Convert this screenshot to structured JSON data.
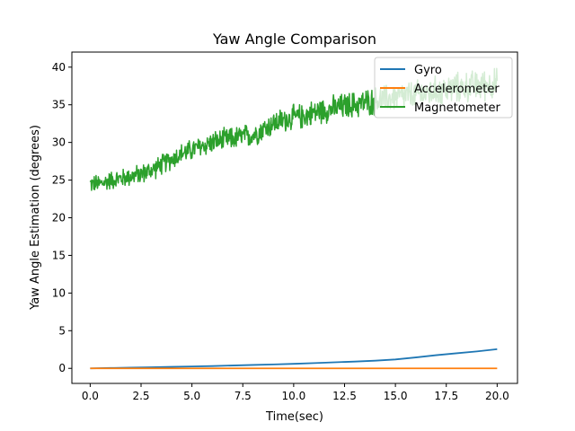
{
  "chart_data": {
    "type": "line",
    "title": "Yaw Angle Comparison",
    "xlabel": "Time(sec)",
    "ylabel": "Yaw Angle Estimation (degrees)",
    "xlim": [
      -0.9,
      21.0
    ],
    "ylim": [
      -2.0,
      42.0
    ],
    "xticks": [
      0.0,
      2.5,
      5.0,
      7.5,
      10.0,
      12.5,
      15.0,
      17.5,
      20.0
    ],
    "xtick_labels": [
      "0.0",
      "2.5",
      "5.0",
      "7.5",
      "10.0",
      "12.5",
      "15.0",
      "17.5",
      "20.0"
    ],
    "yticks": [
      0,
      5,
      10,
      15,
      20,
      25,
      30,
      35,
      40
    ],
    "ytick_labels": [
      "0",
      "5",
      "10",
      "15",
      "20",
      "25",
      "30",
      "35",
      "40"
    ],
    "grid": false,
    "legend_position": "top-right",
    "series": [
      {
        "name": "Gyro",
        "color": "#1f77b4",
        "x": [
          0,
          1,
          2,
          3,
          4,
          5,
          6,
          7,
          8,
          9,
          10,
          11,
          12,
          13,
          14,
          15,
          16,
          17,
          18,
          19,
          20
        ],
        "y": [
          0.0,
          0.05,
          0.1,
          0.15,
          0.2,
          0.25,
          0.3,
          0.38,
          0.45,
          0.52,
          0.6,
          0.7,
          0.8,
          0.9,
          1.02,
          1.18,
          1.45,
          1.75,
          2.0,
          2.25,
          2.55
        ]
      },
      {
        "name": "Accelerometer",
        "color": "#ff7f0e",
        "x": [
          0,
          2.5,
          5,
          7.5,
          10,
          12.5,
          15,
          17.5,
          20
        ],
        "y": [
          0,
          0,
          0,
          0,
          0,
          0,
          0,
          0,
          0
        ]
      },
      {
        "name": "Magnetometer",
        "color": "#2ca02c",
        "x": [
          0,
          0.5,
          1,
          1.5,
          2,
          2.5,
          3,
          3.5,
          4,
          4.5,
          5,
          5.5,
          6,
          6.5,
          7,
          7.5,
          8,
          8.5,
          9,
          9.5,
          10,
          10.5,
          11,
          11.5,
          12,
          12.5,
          13,
          13.5,
          14,
          14.5,
          15,
          15.5,
          16,
          16.5,
          17,
          17.5,
          18,
          18.5,
          19,
          19.5,
          20
        ],
        "y": [
          24.5,
          24.5,
          25.0,
          25.2,
          25.5,
          25.8,
          26.3,
          27.0,
          27.8,
          28.5,
          29.0,
          29.5,
          30.0,
          30.3,
          30.5,
          30.8,
          31.0,
          31.8,
          32.5,
          33.0,
          33.3,
          33.5,
          34.0,
          34.3,
          34.5,
          34.8,
          35.0,
          35.3,
          35.5,
          35.8,
          36.0,
          36.2,
          36.3,
          36.5,
          36.8,
          37.0,
          37.2,
          37.4,
          37.5,
          37.7,
          37.8
        ],
        "noise_band": [
          2.0,
          3.5
        ]
      }
    ]
  }
}
